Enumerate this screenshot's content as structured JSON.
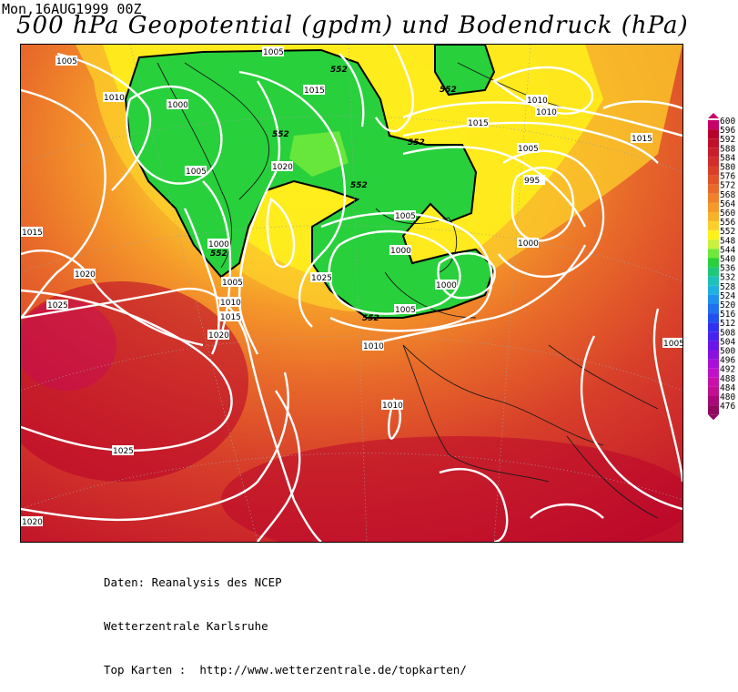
{
  "header": {
    "timestamp": "Mon,16AUG1999 00Z",
    "title": "500 hPa Geopotential (gpdm) und Bodendruck (hPa)"
  },
  "footer": {
    "lines": [
      "Daten: Reanalysis des NCEP",
      "Wetterzentrale Karlsruhe",
      "Top Karten :  http://www.wetterzentrale.de/topkarten/"
    ]
  },
  "legend": {
    "values": [
      "600",
      "596",
      "592",
      "588",
      "584",
      "580",
      "576",
      "572",
      "568",
      "564",
      "560",
      "556",
      "552",
      "548",
      "544",
      "540",
      "536",
      "532",
      "528",
      "524",
      "520",
      "516",
      "512",
      "508",
      "504",
      "500",
      "496",
      "492",
      "488",
      "484",
      "480",
      "476"
    ],
    "colors": [
      "#c8006a",
      "#b8002a",
      "#c0102a",
      "#c81e2a",
      "#d02e2a",
      "#d8402a",
      "#e0542a",
      "#e86a2a",
      "#f0802a",
      "#f5992a",
      "#f8b22a",
      "#fcd02a",
      "#fff21a",
      "#c8f03c",
      "#6ee83c",
      "#28d03c",
      "#1ec878",
      "#1ec0b8",
      "#20b0e0",
      "#2090f0",
      "#2070f0",
      "#2050f0",
      "#3030f0",
      "#4a22f0",
      "#6a14e8",
      "#8a10e0",
      "#a810d8",
      "#c010c8",
      "#c810a8",
      "#c01090",
      "#a80878",
      "#900860"
    ]
  },
  "map": {
    "isobar_labels": [
      "1005",
      "1025",
      "1010",
      "1000",
      "1015",
      "1005",
      "1020",
      "1020",
      "1000",
      "1005",
      "1010",
      "1015",
      "1020",
      "1025",
      "1015",
      "1005",
      "1010",
      "1010",
      "1015",
      "1005",
      "995",
      "1000",
      "1000",
      "1005",
      "1000",
      "1005",
      "1010",
      "1010",
      "1005",
      "1025",
      "1020",
      "1015"
    ],
    "geo_labels": [
      "552",
      "552",
      "552",
      "552",
      "552",
      "552",
      "552"
    ]
  }
}
